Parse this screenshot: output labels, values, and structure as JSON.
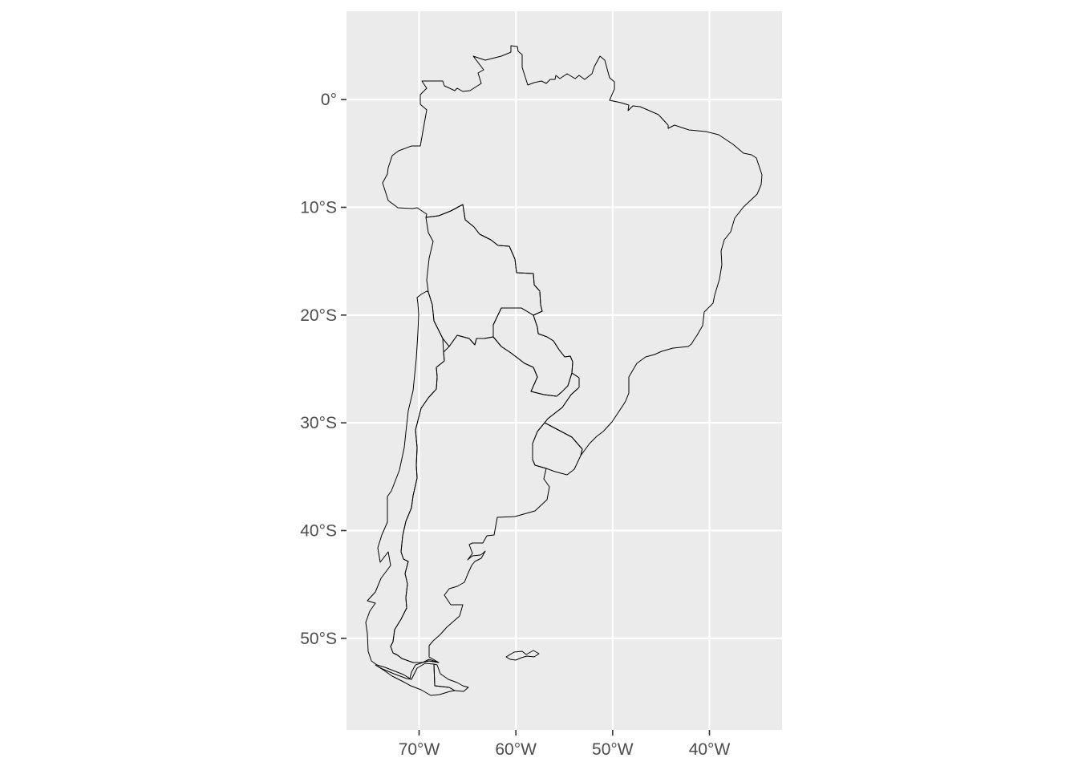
{
  "map": {
    "type": "choropleth-outline",
    "region": "South America (southern cone and Brazil)",
    "panel_background": "#EBEBEB",
    "grid_color": "#FFFFFF",
    "outline_color": "#000000",
    "x_axis": {
      "labels": [
        "70°W",
        "60°W",
        "50°W",
        "40°W"
      ],
      "values": [
        -70,
        -60,
        -50,
        -40
      ],
      "range": [
        -77.5,
        -32.5
      ]
    },
    "y_axis": {
      "labels": [
        "0°",
        "10°S",
        "20°S",
        "30°S",
        "40°S",
        "50°S"
      ],
      "values": [
        0,
        -10,
        -20,
        -30,
        -40,
        -50
      ],
      "range": [
        -58.5,
        8.2
      ]
    },
    "countries": [
      "Brazil",
      "Bolivia",
      "Paraguay",
      "Chile",
      "Argentina",
      "Uruguay",
      "Falkland Islands"
    ]
  }
}
